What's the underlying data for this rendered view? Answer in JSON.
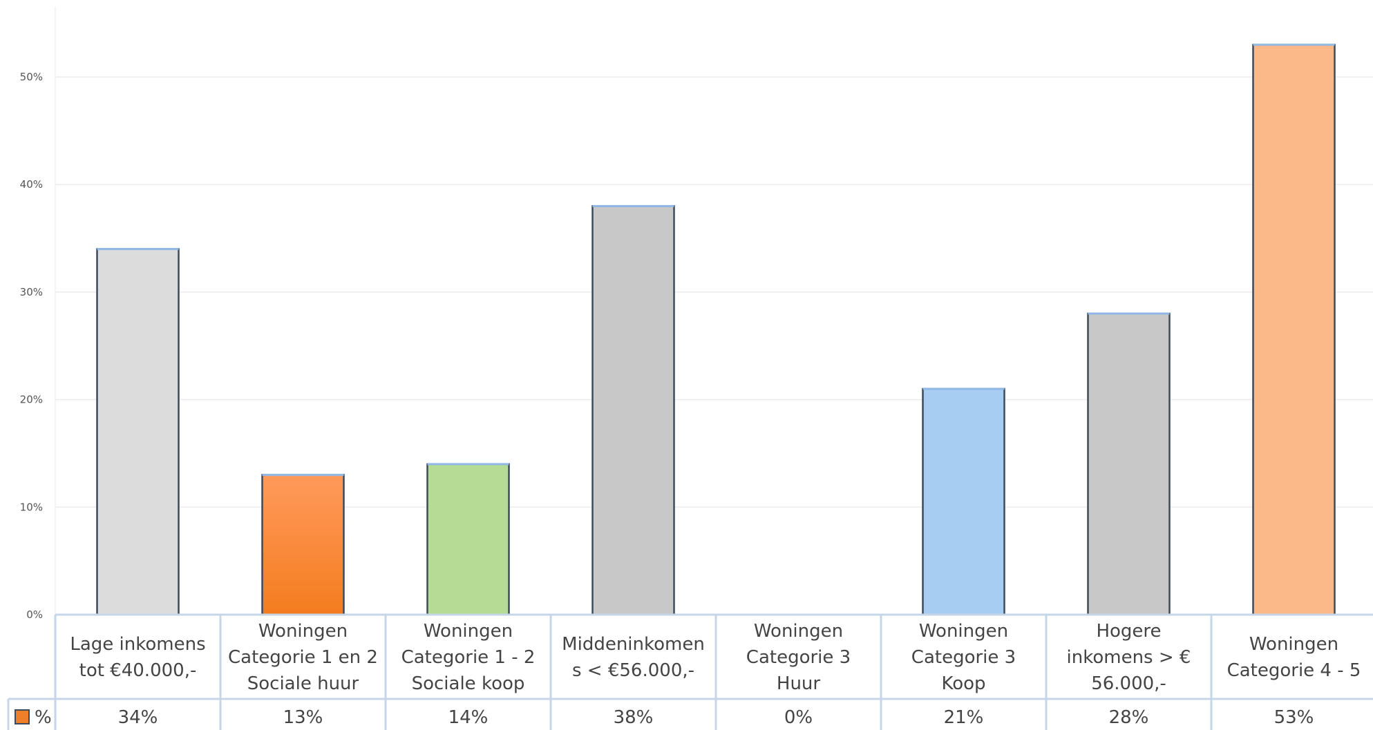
{
  "chart_data": {
    "type": "bar",
    "title": "",
    "xlabel": "",
    "ylabel": "",
    "ylim": [
      0,
      55
    ],
    "y_ticks": [
      0,
      10,
      20,
      30,
      40,
      50
    ],
    "y_tick_labels": [
      "0%",
      "10%",
      "20%",
      "30%",
      "40%",
      "50%"
    ],
    "grid": true,
    "categories": [
      [
        "Lage inkomens",
        "tot €40.000,-"
      ],
      [
        "Woningen",
        "Categorie 1 en 2",
        "Sociale huur"
      ],
      [
        "Woningen",
        "Categorie 1 - 2",
        "Sociale koop"
      ],
      [
        "Middeninkomen",
        "s < €56.000,-"
      ],
      [
        "Woningen",
        "Categorie 3",
        "Huur"
      ],
      [
        "Woningen",
        "Categorie 3",
        "Koop"
      ],
      [
        "Hogere",
        "inkomens > €",
        "56.000,-"
      ],
      [
        "Woningen",
        "Categorie 4 - 5"
      ]
    ],
    "values": [
      34,
      13,
      14,
      38,
      0,
      21,
      28,
      53
    ],
    "value_labels": [
      "34%",
      "13%",
      "14%",
      "38%",
      "0%",
      "21%",
      "28%",
      "53%"
    ],
    "bar_colors": [
      "#dcdcdc",
      "#f47d24",
      "#b5dc94",
      "#c8c8c8",
      "#ffffff",
      "#a8cdf2",
      "#c8c8c8",
      "#fbb98a"
    ],
    "legend": {
      "label": "%",
      "color": "#f07f2a",
      "placement": "data-table"
    },
    "data_table": true
  }
}
